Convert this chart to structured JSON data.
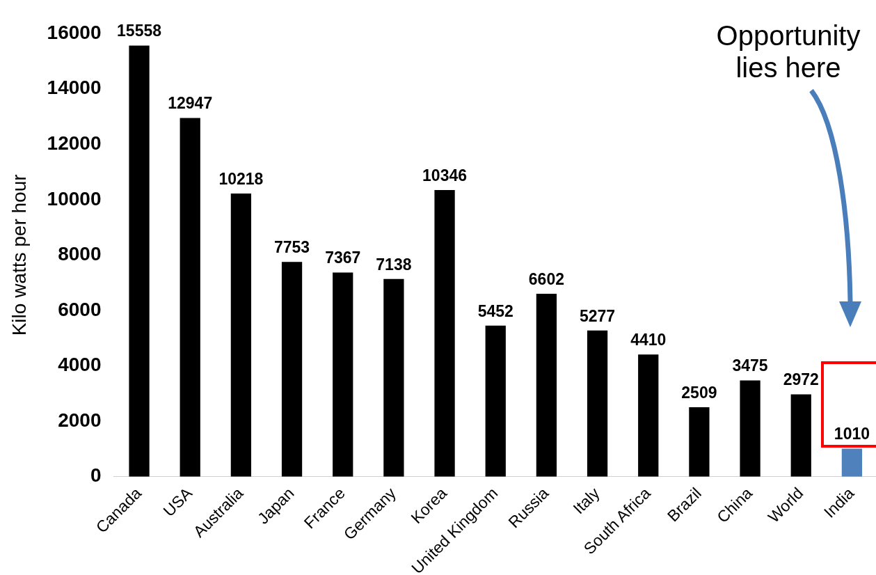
{
  "chart_data": {
    "type": "bar",
    "ylabel": "Kilo watts per hour",
    "categories": [
      "Canada",
      "USA",
      "Australia",
      "Japan",
      "France",
      "Germany",
      "Korea",
      "United Kingdom",
      "Russia",
      "Italy",
      "South Africa",
      "Brazil",
      "China",
      "World",
      "India"
    ],
    "values": [
      15558,
      12947,
      10218,
      7753,
      7367,
      7138,
      10346,
      5452,
      6602,
      5277,
      4410,
      2509,
      3475,
      2972,
      1010
    ],
    "colors": [
      "#000000",
      "#000000",
      "#000000",
      "#000000",
      "#000000",
      "#000000",
      "#000000",
      "#000000",
      "#000000",
      "#000000",
      "#000000",
      "#000000",
      "#000000",
      "#000000",
      "#4f81bd"
    ],
    "ylim": [
      0,
      16000
    ],
    "yticks": [
      0,
      2000,
      4000,
      6000,
      8000,
      10000,
      12000,
      14000,
      16000
    ],
    "data_labels": true,
    "grid": false,
    "legend": false,
    "annotations": [
      "Opportunity lies here"
    ]
  }
}
